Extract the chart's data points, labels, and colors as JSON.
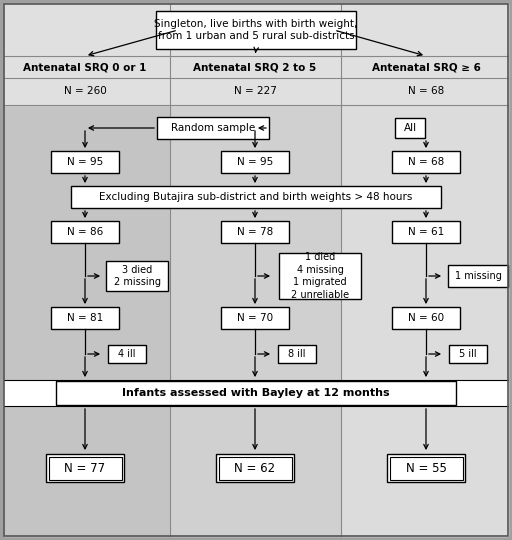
{
  "col1_header": "Antenatal SRQ 0 or 1",
  "col2_header": "Antenatal SRQ 2 to 5",
  "col3_header": "Antenatal SRQ ≥ 6",
  "top_box": "Singleton, live births with birth weight,\nfrom 1 urban and 5 rural sub-districts",
  "n_col1": "N = 260",
  "n_col2": "N = 227",
  "n_col3": "N = 68",
  "random_sample_label": "Random sample",
  "all_label": "All",
  "n_95_1": "N = 95",
  "n_95_2": "N = 95",
  "n_68_box": "N = 68",
  "exclude_box": "Excluding Butajira sub-district and birth weights > 48 hours",
  "n_86": "N = 86",
  "n_78": "N = 78",
  "n_61": "N = 61",
  "exclusion1": "3 died\n2 missing",
  "exclusion2": "1 died\n4 missing\n1 migrated\n2 unreliable",
  "exclusion3": "1 missing",
  "n_81": "N = 81",
  "n_70": "N = 70",
  "n_60": "N = 60",
  "ill1": "4 ill",
  "ill2": "8 ill",
  "ill3": "5 ill",
  "bayley_box": "Infants assessed with Bayley at 12 months",
  "n_77": "N = 77",
  "n_62": "N = 62",
  "n_55": "N = 55",
  "col_dividers": [
    170,
    341
  ],
  "col_mids": [
    85,
    255,
    426
  ],
  "bg_outer": "#a8a8a8",
  "bg_light": "#e0e0e0",
  "col_bg": [
    "#c4c4c4",
    "#d0d0d0",
    "#dcdcdc"
  ],
  "header_bg": "#e8e8e8",
  "bayley_bg": "#eeeeee"
}
